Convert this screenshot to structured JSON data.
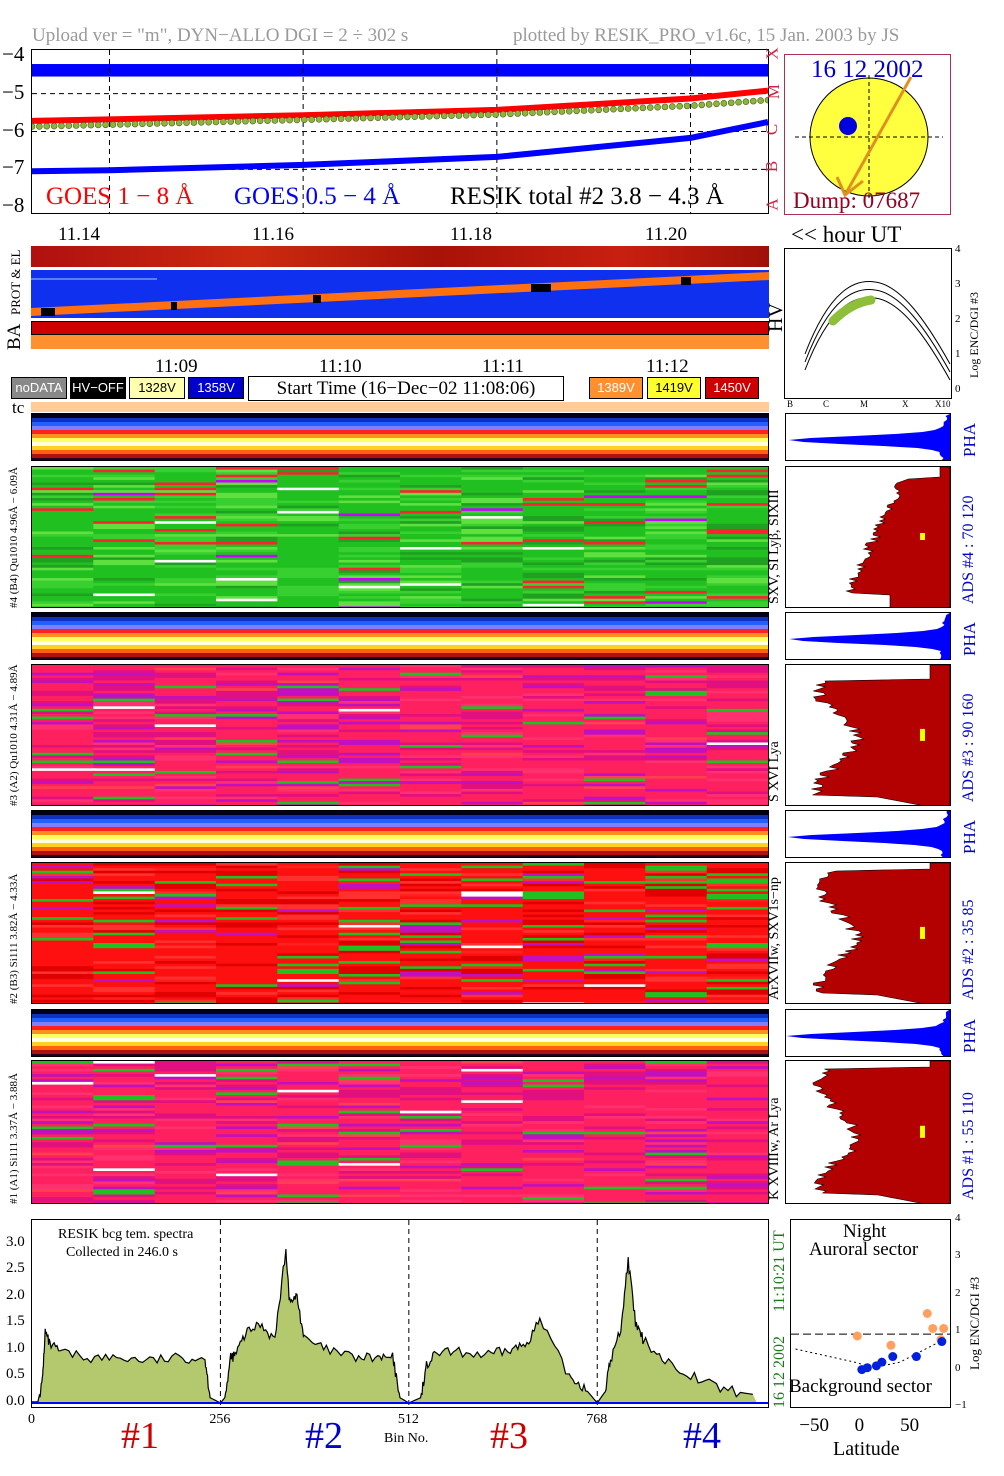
{
  "header": {
    "upload": "Upload ver = \"m\", DYN−ALLO DGI =   2 ÷ 302 s",
    "plotted": "plotted by RESIK_PRO_v1.6c, 15 Jan. 2003 by JS"
  },
  "goes": {
    "y_ticks": [
      "−4",
      "−5",
      "−6",
      "−7",
      "−8"
    ],
    "class_letters": [
      "X",
      "M",
      "C",
      "B",
      "A"
    ],
    "legend_goes_long": "GOES 1 − 8 Å",
    "legend_goes_short": "GOES 0.5 − 4 Å",
    "legend_resik": "RESIK total #2  3.8 − 4.3 Å",
    "colors": {
      "long": "#ff0000",
      "short": "#0000ff",
      "resik": "#8db53a",
      "band": "#0000ff"
    }
  },
  "sun": {
    "date": "16 12 2002",
    "dump": "Dump: 07687"
  },
  "time_axis": {
    "labels": [
      "11.14",
      "11.16",
      "11.18",
      "11.20"
    ],
    "unit": "<< hour UT",
    "row_labels": [
      "PROT & EL",
      "BA"
    ]
  },
  "hv": {
    "label": "HV",
    "y_ticks": [
      "4",
      "3",
      "2",
      "1",
      "0"
    ],
    "y_label": "Log ENC/DGI #3",
    "x_ticks": [
      "B",
      "C",
      "M",
      "X",
      "X10"
    ]
  },
  "legend": {
    "times": [
      "11:09",
      "11:10",
      "11:11",
      "11:12"
    ],
    "chips_left": [
      {
        "text": "noDATA",
        "bg": "#888888",
        "fg": "#ffffff"
      },
      {
        "text": "HV−OFF",
        "bg": "#000000",
        "fg": "#ffffff"
      },
      {
        "text": "1328V",
        "bg": "#ffffb0",
        "fg": "#000000"
      },
      {
        "text": "1358V",
        "bg": "#0000cc",
        "fg": "#ffffff"
      }
    ],
    "start_time": "Start Time (16−Dec−02 11:08:06)",
    "chips_right": [
      {
        "text": "1389V",
        "bg": "#ff9030",
        "fg": "#ffffff"
      },
      {
        "text": "1419V",
        "bg": "#ffff30",
        "fg": "#000000"
      },
      {
        "text": "1450V",
        "bg": "#cc0000",
        "fg": "#ffffff"
      }
    ],
    "tc": "tc"
  },
  "channels": [
    {
      "pha_label": "#4 (B4) Qu1010 4.96Å − 6.09Å",
      "line_label": "SXV, SI Lyβ, SIXIII",
      "ads_label": "ADS #4 :   70 120",
      "pha_side": "PHA"
    },
    {
      "pha_label": "#3 (A2) Qu1010 4.31Å − 4.89Å",
      "line_label": "S XVI Lya",
      "ads_label": "ADS #3 :   90 160",
      "pha_side": "PHA"
    },
    {
      "pha_label": "#2 (B3) Si111 3.82Å − 4.33Å",
      "line_label": "ArXVIIw, SXV1s−np",
      "ads_label": "ADS #2 :   35 85",
      "pha_side": "PHA"
    },
    {
      "pha_label": "#1 (A1) Si111 3.37Å − 3.88Å",
      "line_label": "K XVIIIw, Ar Lya",
      "ads_label": "ADS #1 :   55 110",
      "pha_side": "PHA"
    }
  ],
  "spectrum": {
    "legend_1": "RESIK bcg tem. spectra",
    "legend_2": "Collected in   246.0 s",
    "y_ticks": [
      "3.0",
      "2.5",
      "2.0",
      "1.5",
      "1.0",
      "0.5",
      "0.0"
    ],
    "x_ticks": [
      "0",
      "256",
      "512",
      "768"
    ],
    "xlabel": "Bin No.",
    "side_date": "16 12 2002",
    "side_time": "11:10:21 UT",
    "channel_labels": [
      "#1",
      "#2",
      "#3",
      "#4"
    ],
    "channel_colors": [
      "#cc0000",
      "#0000cc",
      "#cc0000",
      "#0000cc"
    ]
  },
  "latitude": {
    "title_1": "Night",
    "title_2": "Auroral sector",
    "bottom": "Background sector",
    "x_ticks": [
      "−50",
      "0",
      "50"
    ],
    "xlabel": "Latitude",
    "y_ticks": [
      "4",
      "3",
      "2",
      "1",
      "0",
      "−1"
    ],
    "y_label": "Log ENC/DGI #3"
  },
  "chart_data": [
    {
      "type": "line",
      "title": "",
      "xlabel": "",
      "ylabel": "",
      "x": [
        11.132,
        11.14,
        11.16,
        11.18,
        11.2,
        11.208
      ],
      "ylim": [
        -8.15,
        -3.85
      ],
      "series": [
        {
          "name": "GOES 1 − 8 Å",
          "values": [
            -5.72,
            -5.68,
            -5.57,
            -5.43,
            -5.13,
            -4.92
          ]
        },
        {
          "name": "GOES 0.5 − 4 Å",
          "values": [
            -7.05,
            -7.02,
            -6.88,
            -6.67,
            -6.17,
            -5.75
          ]
        },
        {
          "name": "RESIK total #2  3.8 − 4.3 Å",
          "values": [
            -5.87,
            -5.82,
            -5.69,
            -5.55,
            -5.32,
            -5.17
          ]
        }
      ]
    },
    {
      "type": "area",
      "title": "",
      "xlabel": "Bin No.",
      "ylabel": "",
      "ylim": [
        0,
        3.3
      ],
      "x": [
        0,
        8,
        14,
        18,
        24,
        40,
        80,
        120,
        160,
        200,
        235,
        242,
        256,
        262,
        270,
        276,
        290,
        310,
        330,
        345,
        350,
        360,
        370,
        400,
        440,
        470,
        490,
        500,
        512,
        528,
        536,
        550,
        580,
        620,
        650,
        670,
        690,
        730,
        750,
        768,
        778,
        786,
        800,
        810,
        820,
        830,
        860,
        900,
        940,
        985
      ],
      "series": [
        {
          "name": "RESIK bcg tem. spectra",
          "values": [
            0.02,
            0.02,
            0.4,
            1.35,
            1.1,
            0.95,
            0.85,
            0.85,
            0.8,
            0.85,
            0.85,
            0.1,
            0.0,
            0.1,
            0.85,
            0.9,
            1.3,
            1.5,
            1.2,
            2.9,
            1.9,
            2.0,
            1.2,
            1.0,
            0.85,
            0.85,
            0.85,
            0.1,
            0.0,
            0.1,
            0.7,
            0.95,
            0.95,
            0.9,
            1.0,
            1.1,
            1.55,
            0.5,
            0.3,
            0.0,
            0.2,
            0.8,
            1.4,
            2.7,
            1.5,
            1.2,
            0.8,
            0.5,
            0.25,
            0.15
          ]
        }
      ]
    },
    {
      "type": "scatter",
      "title": "",
      "xlabel": "Latitude",
      "ylabel": "Log ENC/DGI #3",
      "xlim": [
        -80,
        95
      ],
      "ylim": [
        -1,
        4
      ],
      "series": [
        {
          "name": "",
          "x": [
            -7,
            30,
            70,
            76,
            85,
            88
          ],
          "values": [
            0.9,
            0.65,
            1.5,
            1.1,
            0.8,
            1.1
          ]
        },
        {
          "name": "",
          "x": [
            -2,
            4,
            14,
            20,
            32,
            58,
            86
          ],
          "values": [
            0.0,
            0.05,
            0.1,
            0.2,
            0.35,
            0.35,
            0.75
          ]
        }
      ],
      "threshold": 0.95
    }
  ]
}
